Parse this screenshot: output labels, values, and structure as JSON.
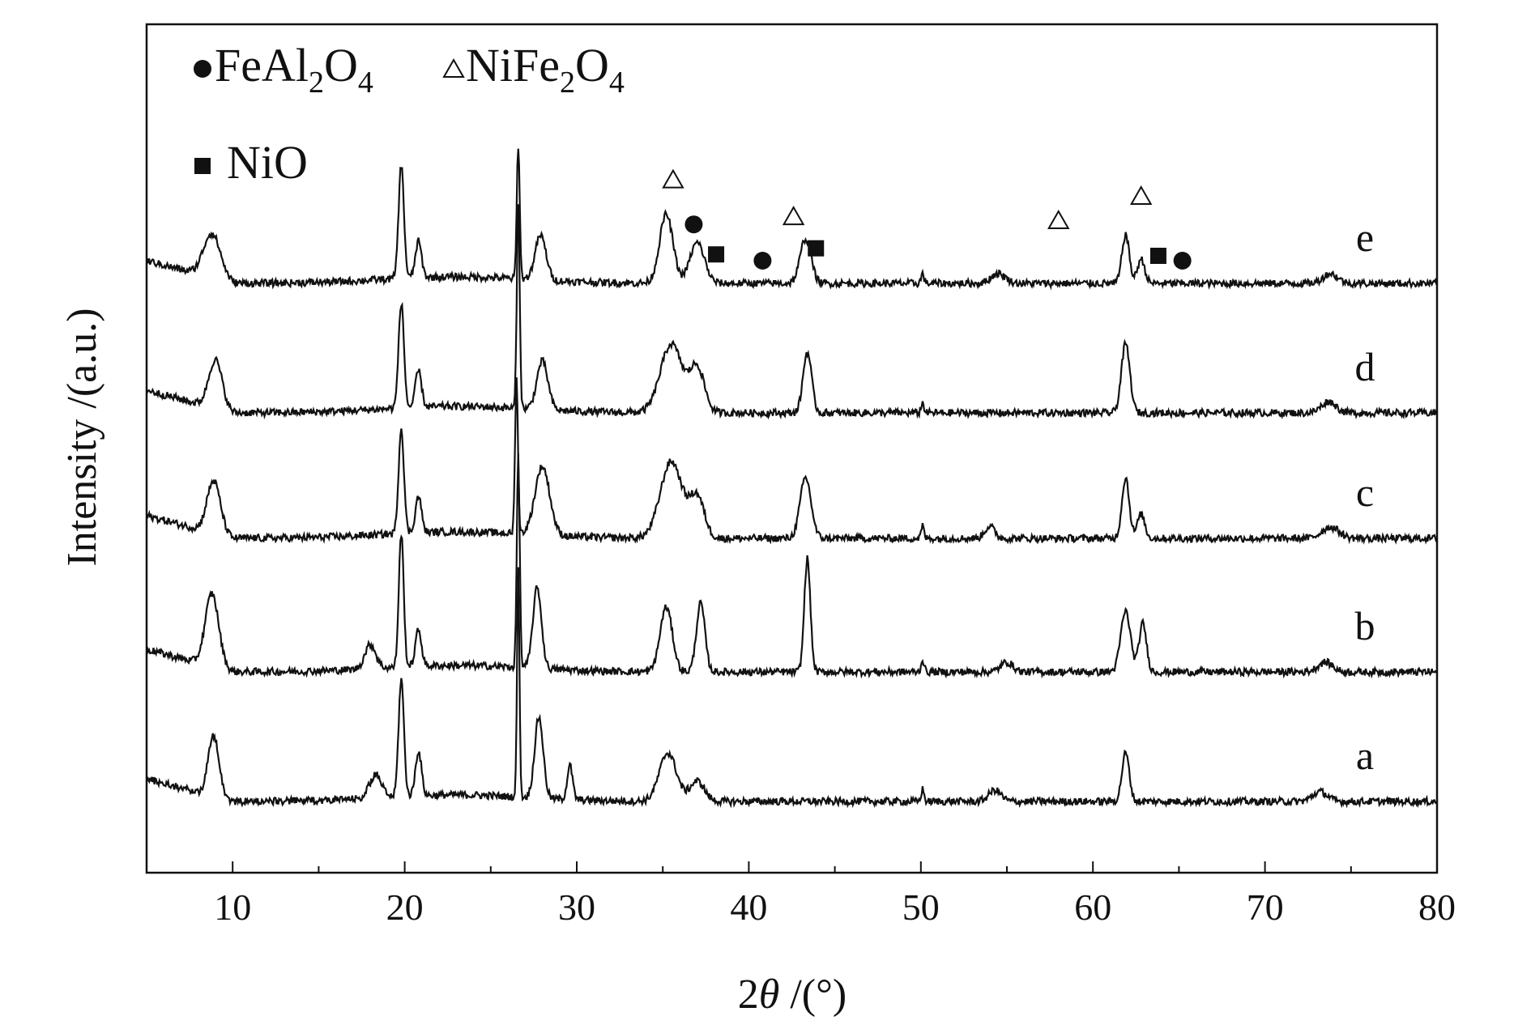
{
  "chart_data": {
    "type": "line",
    "title": "",
    "xlabel": "2θ /(°)",
    "xlabel_parts": {
      "pre": "2",
      "theta": "θ",
      "post": " /(°)"
    },
    "ylabel": "Intensity /(a.u.)",
    "xlim": [
      5,
      80
    ],
    "x_ticks": [
      10,
      20,
      30,
      40,
      50,
      60,
      70,
      80
    ],
    "y_ticks": [],
    "grid": false,
    "legend_position": "top-left",
    "legend": [
      {
        "marker": "filled-circle",
        "name_parts": [
          "FeAl",
          "2",
          "O",
          "4"
        ]
      },
      {
        "marker": "open-triangle",
        "name_parts": [
          "NiFe",
          "2",
          "O",
          "4"
        ]
      },
      {
        "marker": "filled-square",
        "name_parts": [
          "NiO"
        ]
      }
    ],
    "series": [
      {
        "name": "a",
        "baseline": 0.25,
        "peaks": [
          {
            "x": 8.9,
            "h": 0.75,
            "w": 0.45
          },
          {
            "x": 18.3,
            "h": 0.28,
            "w": 0.5
          },
          {
            "x": 19.8,
            "h": 1.45,
            "w": 0.22
          },
          {
            "x": 20.8,
            "h": 0.55,
            "w": 0.25
          },
          {
            "x": 26.6,
            "h": 2.8,
            "w": 0.1
          },
          {
            "x": 27.8,
            "h": 1.0,
            "w": 0.35
          },
          {
            "x": 29.6,
            "h": 0.42,
            "w": 0.22
          },
          {
            "x": 35.3,
            "h": 0.6,
            "w": 0.7
          },
          {
            "x": 37.0,
            "h": 0.25,
            "w": 0.6
          },
          {
            "x": 50.1,
            "h": 0.15,
            "w": 0.12
          },
          {
            "x": 54.3,
            "h": 0.14,
            "w": 0.5
          },
          {
            "x": 61.9,
            "h": 0.6,
            "w": 0.3
          },
          {
            "x": 73.2,
            "h": 0.12,
            "w": 0.6
          }
        ]
      },
      {
        "name": "b",
        "baseline": 0.25,
        "peaks": [
          {
            "x": 8.8,
            "h": 0.9,
            "w": 0.55
          },
          {
            "x": 18.0,
            "h": 0.3,
            "w": 0.45
          },
          {
            "x": 19.8,
            "h": 1.65,
            "w": 0.2
          },
          {
            "x": 20.8,
            "h": 0.45,
            "w": 0.25
          },
          {
            "x": 26.6,
            "h": 2.6,
            "w": 0.12
          },
          {
            "x": 27.7,
            "h": 1.0,
            "w": 0.35
          },
          {
            "x": 35.2,
            "h": 0.8,
            "w": 0.5
          },
          {
            "x": 37.2,
            "h": 0.85,
            "w": 0.35
          },
          {
            "x": 43.4,
            "h": 1.4,
            "w": 0.25
          },
          {
            "x": 50.1,
            "h": 0.15,
            "w": 0.12
          },
          {
            "x": 55.0,
            "h": 0.12,
            "w": 0.5
          },
          {
            "x": 61.9,
            "h": 0.75,
            "w": 0.4
          },
          {
            "x": 62.9,
            "h": 0.6,
            "w": 0.3
          },
          {
            "x": 73.5,
            "h": 0.12,
            "w": 0.6
          }
        ]
      },
      {
        "name": "c",
        "baseline": 0.25,
        "peaks": [
          {
            "x": 8.9,
            "h": 0.65,
            "w": 0.55
          },
          {
            "x": 19.8,
            "h": 1.3,
            "w": 0.22
          },
          {
            "x": 20.8,
            "h": 0.45,
            "w": 0.25
          },
          {
            "x": 26.5,
            "h": 1.9,
            "w": 0.12
          },
          {
            "x": 28.0,
            "h": 0.85,
            "w": 0.6
          },
          {
            "x": 35.5,
            "h": 0.95,
            "w": 0.9
          },
          {
            "x": 37.0,
            "h": 0.5,
            "w": 0.6
          },
          {
            "x": 43.3,
            "h": 0.75,
            "w": 0.45
          },
          {
            "x": 50.1,
            "h": 0.15,
            "w": 0.12
          },
          {
            "x": 54.0,
            "h": 0.15,
            "w": 0.4
          },
          {
            "x": 61.9,
            "h": 0.75,
            "w": 0.3
          },
          {
            "x": 62.8,
            "h": 0.3,
            "w": 0.3
          },
          {
            "x": 73.8,
            "h": 0.14,
            "w": 0.7
          }
        ]
      },
      {
        "name": "d",
        "baseline": 0.25,
        "peaks": [
          {
            "x": 9.0,
            "h": 0.6,
            "w": 0.55
          },
          {
            "x": 19.8,
            "h": 1.3,
            "w": 0.22
          },
          {
            "x": 20.8,
            "h": 0.45,
            "w": 0.25
          },
          {
            "x": 26.6,
            "h": 2.5,
            "w": 0.12
          },
          {
            "x": 28.0,
            "h": 0.6,
            "w": 0.45
          },
          {
            "x": 35.5,
            "h": 0.85,
            "w": 0.9
          },
          {
            "x": 37.0,
            "h": 0.55,
            "w": 0.6
          },
          {
            "x": 43.4,
            "h": 0.75,
            "w": 0.35
          },
          {
            "x": 50.1,
            "h": 0.12,
            "w": 0.12
          },
          {
            "x": 61.9,
            "h": 0.85,
            "w": 0.35
          },
          {
            "x": 73.7,
            "h": 0.14,
            "w": 0.6
          }
        ]
      },
      {
        "name": "e",
        "baseline": 0.25,
        "peaks": [
          {
            "x": 8.8,
            "h": 0.55,
            "w": 0.7
          },
          {
            "x": 19.8,
            "h": 1.4,
            "w": 0.22
          },
          {
            "x": 20.8,
            "h": 0.45,
            "w": 0.25
          },
          {
            "x": 26.6,
            "h": 1.65,
            "w": 0.12
          },
          {
            "x": 27.9,
            "h": 0.55,
            "w": 0.45
          },
          {
            "x": 35.2,
            "h": 0.85,
            "w": 0.55
          },
          {
            "x": 37.0,
            "h": 0.5,
            "w": 0.6
          },
          {
            "x": 43.3,
            "h": 0.55,
            "w": 0.45
          },
          {
            "x": 50.1,
            "h": 0.12,
            "w": 0.12
          },
          {
            "x": 54.5,
            "h": 0.12,
            "w": 0.6
          },
          {
            "x": 61.9,
            "h": 0.6,
            "w": 0.3
          },
          {
            "x": 62.8,
            "h": 0.3,
            "w": 0.3
          },
          {
            "x": 73.8,
            "h": 0.12,
            "w": 0.6
          }
        ]
      }
    ],
    "annotations": [
      {
        "marker": "open-triangle",
        "x": 35.6,
        "series": "e"
      },
      {
        "marker": "filled-circle",
        "x": 36.8,
        "series": "e"
      },
      {
        "marker": "filled-square",
        "x": 38.1,
        "series": "e"
      },
      {
        "marker": "filled-circle",
        "x": 40.8,
        "series": "e"
      },
      {
        "marker": "open-triangle",
        "x": 42.6,
        "series": "e"
      },
      {
        "marker": "filled-square",
        "x": 43.9,
        "series": "e"
      },
      {
        "marker": "open-triangle",
        "x": 58.0,
        "series": "e"
      },
      {
        "marker": "open-triangle",
        "x": 62.8,
        "series": "e"
      },
      {
        "marker": "filled-square",
        "x": 63.8,
        "series": "e"
      },
      {
        "marker": "filled-circle",
        "x": 65.2,
        "series": "e"
      }
    ],
    "colors": {
      "line": "#111111",
      "axis": "#111111",
      "background": "#ffffff"
    }
  }
}
